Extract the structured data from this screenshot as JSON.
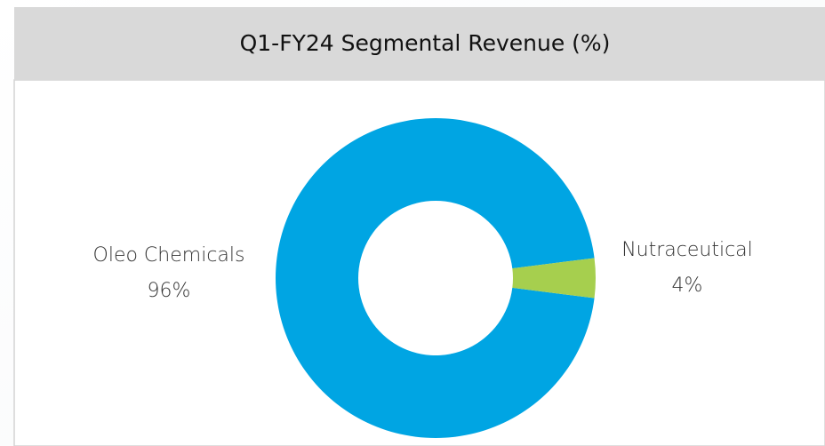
{
  "chart_data": {
    "type": "donut",
    "title": "Q1-FY24 Segmental Revenue (%)",
    "categories": [
      "Oleo Chemicals",
      "Nutraceutical"
    ],
    "values": [
      96,
      4
    ],
    "value_labels": [
      "96%",
      "4%"
    ],
    "colors": [
      "#00a5e3",
      "#a6cf4e"
    ]
  }
}
